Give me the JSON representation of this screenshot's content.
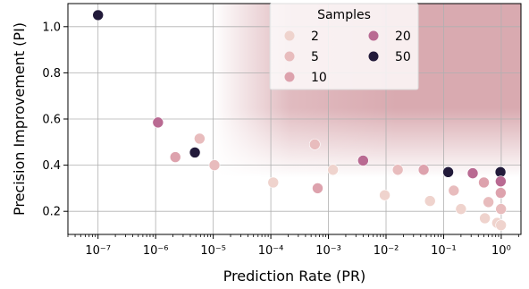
{
  "chart_data": {
    "type": "scatter",
    "xlabel": "Prediction Rate (PR)",
    "ylabel": "Precision Improvement (PI)",
    "xscale": "log",
    "xlim": [
      3e-08,
      2.2
    ],
    "ylim": [
      0.1,
      1.1
    ],
    "grid": true,
    "xticks": [
      {
        "value": 1e-07,
        "label": "10⁻⁷"
      },
      {
        "value": 1e-06,
        "label": "10⁻⁶"
      },
      {
        "value": 1e-05,
        "label": "10⁻⁵"
      },
      {
        "value": 0.0001,
        "label": "10⁻⁴"
      },
      {
        "value": 0.001,
        "label": "10⁻³"
      },
      {
        "value": 0.01,
        "label": "10⁻²"
      },
      {
        "value": 0.1,
        "label": "10⁻¹"
      },
      {
        "value": 1,
        "label": "10⁰"
      }
    ],
    "yticks": [
      {
        "value": 0.2,
        "label": "0.2"
      },
      {
        "value": 0.4,
        "label": "0.4"
      },
      {
        "value": 0.6,
        "label": "0.6"
      },
      {
        "value": 0.8,
        "label": "0.8"
      },
      {
        "value": 1.0,
        "label": "1.0"
      }
    ],
    "legend": {
      "title": "Samples",
      "placement": "top-center",
      "entries": [
        {
          "label": "2",
          "color": "#efd3cd"
        },
        {
          "label": "5",
          "color": "#e8bcbd"
        },
        {
          "label": "10",
          "color": "#dda2ad"
        },
        {
          "label": "20",
          "color": "#b96a92"
        },
        {
          "label": "50",
          "color": "#221a3a"
        }
      ]
    },
    "region_color": "#d9aab0",
    "points": [
      {
        "x": 1e-07,
        "y": 1.05,
        "samples": 50
      },
      {
        "x": 1.1e-06,
        "y": 0.585,
        "samples": 20
      },
      {
        "x": 2.2e-06,
        "y": 0.435,
        "samples": 10
      },
      {
        "x": 4.8e-06,
        "y": 0.455,
        "samples": 50
      },
      {
        "x": 5.8e-06,
        "y": 0.515,
        "samples": 5
      },
      {
        "x": 1.05e-05,
        "y": 0.4,
        "samples": 5
      },
      {
        "x": 0.00011,
        "y": 0.325,
        "samples": 2
      },
      {
        "x": 0.00058,
        "y": 0.49,
        "samples": 5
      },
      {
        "x": 0.00065,
        "y": 0.3,
        "samples": 10
      },
      {
        "x": 0.0012,
        "y": 0.38,
        "samples": 2
      },
      {
        "x": 0.004,
        "y": 0.42,
        "samples": 20
      },
      {
        "x": 0.0095,
        "y": 0.27,
        "samples": 2
      },
      {
        "x": 0.016,
        "y": 0.38,
        "samples": 5
      },
      {
        "x": 0.045,
        "y": 0.38,
        "samples": 10
      },
      {
        "x": 0.058,
        "y": 0.245,
        "samples": 2
      },
      {
        "x": 0.12,
        "y": 0.37,
        "samples": 50
      },
      {
        "x": 0.15,
        "y": 0.29,
        "samples": 5
      },
      {
        "x": 0.2,
        "y": 0.21,
        "samples": 2
      },
      {
        "x": 0.32,
        "y": 0.365,
        "samples": 20
      },
      {
        "x": 0.5,
        "y": 0.325,
        "samples": 10
      },
      {
        "x": 0.52,
        "y": 0.17,
        "samples": 2
      },
      {
        "x": 0.6,
        "y": 0.24,
        "samples": 5
      },
      {
        "x": 0.85,
        "y": 0.15,
        "samples": 2
      },
      {
        "x": 0.97,
        "y": 0.37,
        "samples": 50
      },
      {
        "x": 0.98,
        "y": 0.33,
        "samples": 20
      },
      {
        "x": 0.98,
        "y": 0.28,
        "samples": 10
      },
      {
        "x": 0.99,
        "y": 0.21,
        "samples": 5
      },
      {
        "x": 0.99,
        "y": 0.14,
        "samples": 2
      }
    ]
  }
}
